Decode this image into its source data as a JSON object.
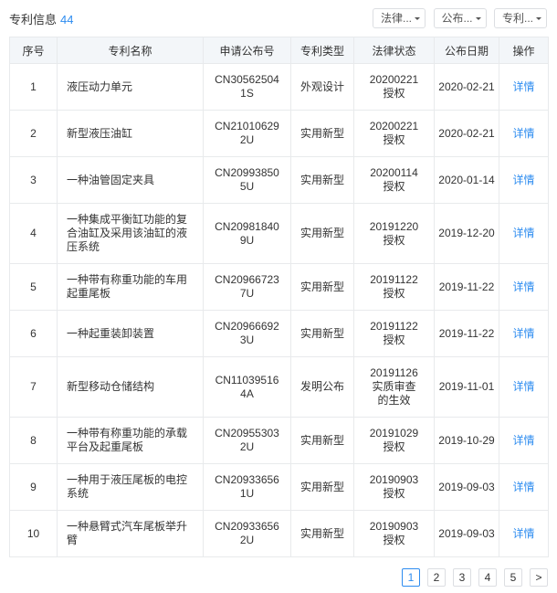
{
  "header": {
    "title": "专利信息",
    "count": "44",
    "filters": [
      "法律...",
      "公布...",
      "专利..."
    ]
  },
  "table": {
    "columns": [
      "序号",
      "专利名称",
      "申请公布号",
      "专利类型",
      "法律状态",
      "公布日期",
      "操作"
    ],
    "rows": [
      {
        "no": "1",
        "name": "液压动力单元",
        "pub_no": "CN305625041S",
        "type": "外观设计",
        "legal_date": "20200221",
        "legal_status": "授权",
        "pub_date": "2020-02-21",
        "action": "详情"
      },
      {
        "no": "2",
        "name": "新型液压油缸",
        "pub_no": "CN210106292U",
        "type": "实用新型",
        "legal_date": "20200221",
        "legal_status": "授权",
        "pub_date": "2020-02-21",
        "action": "详情"
      },
      {
        "no": "3",
        "name": "一种油管固定夹具",
        "pub_no": "CN209938505U",
        "type": "实用新型",
        "legal_date": "20200114",
        "legal_status": "授权",
        "pub_date": "2020-01-14",
        "action": "详情"
      },
      {
        "no": "4",
        "name": "一种集成平衡缸功能的复合油缸及采用该油缸的液压系统",
        "pub_no": "CN209818409U",
        "type": "实用新型",
        "legal_date": "20191220",
        "legal_status": "授权",
        "pub_date": "2019-12-20",
        "action": "详情"
      },
      {
        "no": "5",
        "name": "一种带有称重功能的车用起重尾板",
        "pub_no": "CN209667237U",
        "type": "实用新型",
        "legal_date": "20191122",
        "legal_status": "授权",
        "pub_date": "2019-11-22",
        "action": "详情"
      },
      {
        "no": "6",
        "name": "一种起重装卸装置",
        "pub_no": "CN209666923U",
        "type": "实用新型",
        "legal_date": "20191122",
        "legal_status": "授权",
        "pub_date": "2019-11-22",
        "action": "详情"
      },
      {
        "no": "7",
        "name": "新型移动仓储结构",
        "pub_no": "CN110395164A",
        "type": "发明公布",
        "legal_date": "20191126",
        "legal_status": "实质审查的生效",
        "pub_date": "2019-11-01",
        "action": "详情"
      },
      {
        "no": "8",
        "name": "一种带有称重功能的承载平台及起重尾板",
        "pub_no": "CN209553032U",
        "type": "实用新型",
        "legal_date": "20191029",
        "legal_status": "授权",
        "pub_date": "2019-10-29",
        "action": "详情"
      },
      {
        "no": "9",
        "name": "一种用于液压尾板的电控系统",
        "pub_no": "CN209336561U",
        "type": "实用新型",
        "legal_date": "20190903",
        "legal_status": "授权",
        "pub_date": "2019-09-03",
        "action": "详情"
      },
      {
        "no": "10",
        "name": "一种悬臂式汽车尾板举升臂",
        "pub_no": "CN209336562U",
        "type": "实用新型",
        "legal_date": "20190903",
        "legal_status": "授权",
        "pub_date": "2019-09-03",
        "action": "详情"
      }
    ]
  },
  "pagination": {
    "pages": [
      "1",
      "2",
      "3",
      "4",
      "5"
    ]
  }
}
